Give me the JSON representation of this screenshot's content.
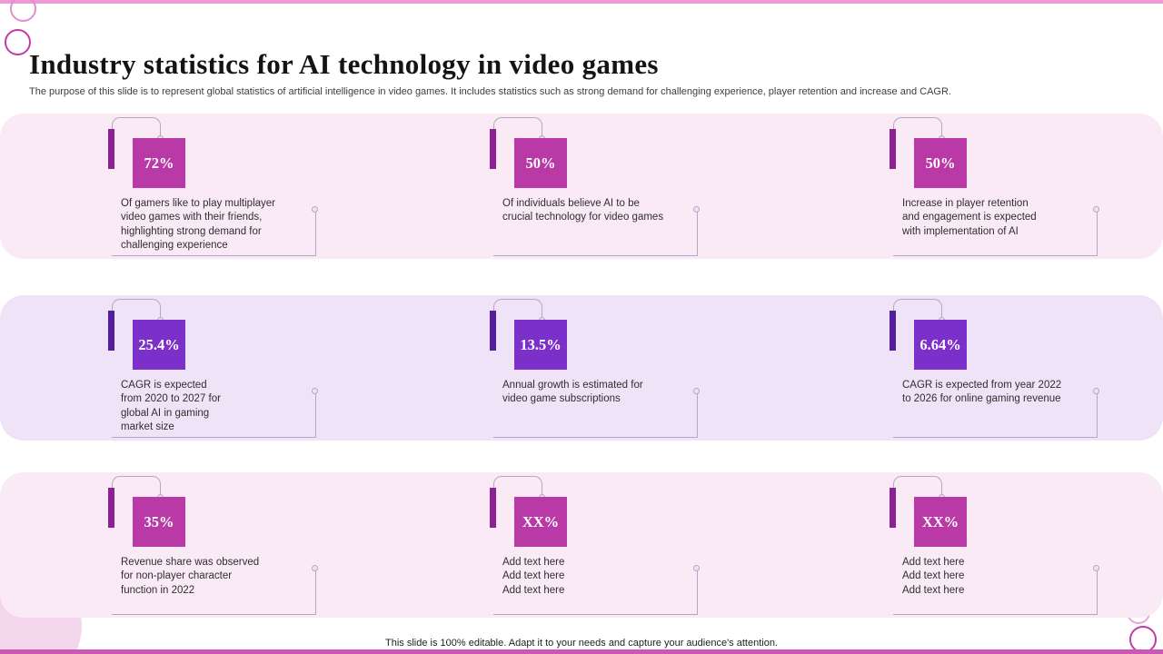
{
  "slide": {
    "title": "Industry statistics for AI technology in video games",
    "subtitle": "The purpose of this slide is to represent global statistics of artificial intelligence in video games. It includes statistics such as strong demand for challenging experience, player retention and increase and CAGR.",
    "footer": "This slide is 100% editable. Adapt it to your needs and capture your audience's attention."
  },
  "colors": {
    "stat_magenta": "#b93aa6",
    "stat_magenta_dark": "#8c2193",
    "stat_purple": "#7b30c9",
    "stat_purple_dark": "#531d9c",
    "band_pink": "#faeaf6",
    "band_purple": "#efe3f8",
    "line_gray": "#b3a9c0",
    "frame_pink_light": "#ec9bd7",
    "frame_pink_dark": "#cb58b4"
  },
  "rows": [
    {
      "theme": "pink",
      "items": [
        {
          "value": "72%",
          "text": "Of gamers like to play multiplayer\nvideo games with their friends,\nhighlighting strong demand for\nchallenging experience"
        },
        {
          "value": "50%",
          "text": "Of individuals believe AI to be\ncrucial technology for video games"
        },
        {
          "value": "50%",
          "text": "Increase in player retention\nand engagement is expected\nwith implementation of AI"
        }
      ]
    },
    {
      "theme": "purple",
      "items": [
        {
          "value": "25.4%",
          "text": "CAGR is expected\nfrom 2020 to 2027 for\nglobal AI in gaming\nmarket size"
        },
        {
          "value": "13.5%",
          "text": "Annual growth is estimated for\nvideo game subscriptions"
        },
        {
          "value": "6.64%",
          "text": "CAGR is expected from year 2022\nto 2026 for online gaming revenue"
        }
      ]
    },
    {
      "theme": "pink",
      "items": [
        {
          "value": "35%",
          "text": "Revenue share was observed\nfor non-player character\nfunction in 2022"
        },
        {
          "value": "XX%",
          "text": "Add text here\nAdd text here\nAdd text here"
        },
        {
          "value": "XX%",
          "text": "Add text here\nAdd text here\nAdd text here"
        }
      ]
    }
  ]
}
